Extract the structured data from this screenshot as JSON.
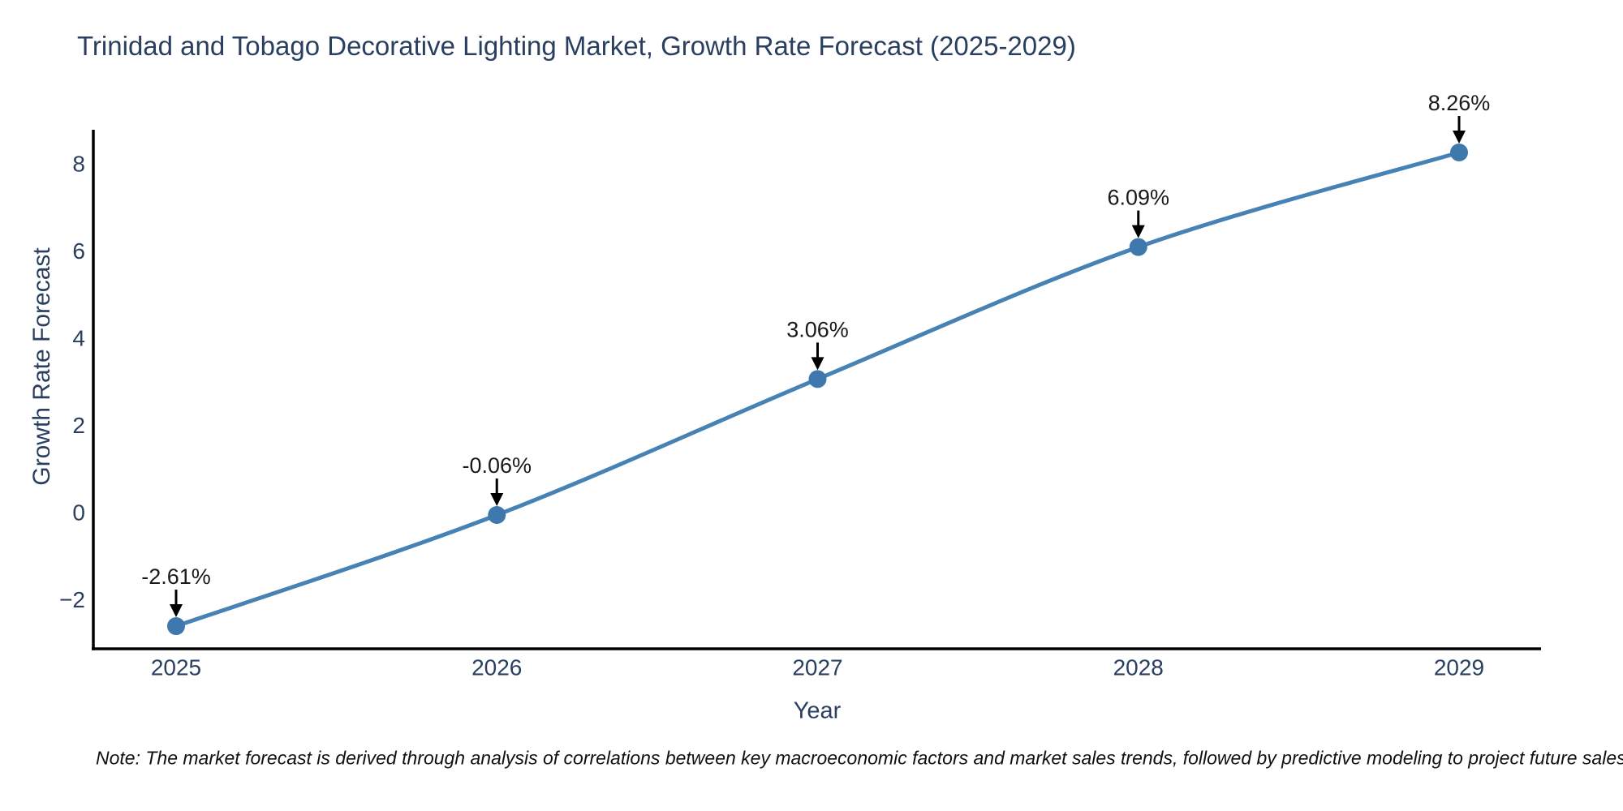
{
  "title": "Trinidad and Tobago Decorative Lighting Market, Growth Rate Forecast (2025-2029)",
  "note": "Note: The market forecast is derived through analysis of correlations between key macroeconomic factors and market sales trends, followed by predictive modeling to project future sales",
  "chart_data": {
    "type": "line",
    "title": "Trinidad and Tobago Decorative Lighting Market, Growth Rate Forecast (2025-2029)",
    "xlabel": "Year",
    "ylabel": "Growth Rate Forecast",
    "x": [
      2025,
      2026,
      2027,
      2028,
      2029
    ],
    "values": [
      -2.61,
      -0.06,
      3.06,
      6.09,
      8.26
    ],
    "point_labels": [
      "-2.61%",
      "-0.06%",
      "3.06%",
      "6.09%",
      "8.26%"
    ],
    "xtick_labels": [
      "2025",
      "2026",
      "2027",
      "2028",
      "2029"
    ],
    "yticks": [
      8,
      6,
      4,
      2,
      0,
      -2
    ],
    "ytick_labels": [
      "8",
      "6",
      "4",
      "2",
      "0",
      "−2"
    ],
    "ylim": [
      -3.15,
      8.8
    ],
    "grid": false,
    "legend": false,
    "line_shape": "spline",
    "colors": {
      "line": "#4682b4",
      "marker": "#3f78ad",
      "axis": "#000000",
      "tick_text": "#2a3f5f",
      "annotation_text": "#1a1a1a",
      "annotation_arrow": "#000000",
      "background": "#ffffff"
    }
  }
}
